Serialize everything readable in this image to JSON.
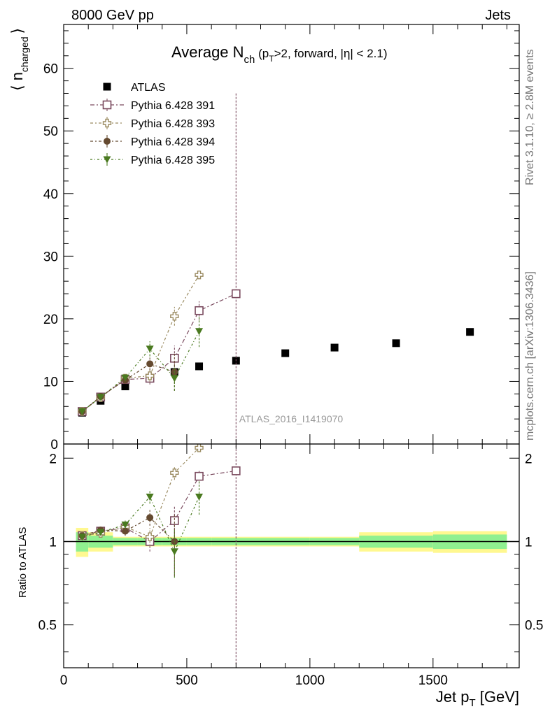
{
  "header": {
    "left": "8000 GeV pp",
    "right": "Jets"
  },
  "side_text": {
    "rivet": "Rivet 3.1.10, ≥ 2.8M events",
    "mcplots": "mcplots.cern.ch [arXiv:1306.3436]"
  },
  "chart_data": [
    {
      "type": "scatter",
      "title_main": "Average N",
      "title_sub": "ch",
      "title_rest_1": " (p",
      "title_rest_sub": "T",
      "title_rest_2": ">2, forward, |η| < 2.1)",
      "ylabel_main": "⟨ n",
      "ylabel_sub": "charged",
      "ylabel_end": "⟩",
      "watermark": "ATLAS_2016_I1419070",
      "xlim": [
        0,
        1850
      ],
      "ylim": [
        0,
        67
      ],
      "yticks": [
        0,
        10,
        20,
        30,
        40,
        50,
        60
      ],
      "series": [
        {
          "name": "ATLAS",
          "color": "#000000",
          "marker": "square-filled",
          "x": [
            75,
            150,
            250,
            350,
            450,
            550,
            700,
            900,
            1100,
            1350,
            1650
          ],
          "y": [
            5.0,
            6.9,
            9.2,
            10.5,
            11.5,
            12.4,
            13.3,
            14.5,
            15.4,
            16.1,
            17.9
          ]
        },
        {
          "name": "Pythia 6.428 391",
          "color": "#7a4a5e",
          "marker": "square-open",
          "x": [
            75,
            150,
            250,
            350,
            450,
            550,
            700
          ],
          "y": [
            5.2,
            7.5,
            10.3,
            10.5,
            13.7,
            21.3,
            24.0
          ],
          "err": [
            0.3,
            0.3,
            0.5,
            1.0,
            2.0,
            1.5,
            32.0
          ]
        },
        {
          "name": "Pythia 6.428 393",
          "color": "#9a8a60",
          "marker": "cross-open",
          "x": [
            75,
            150,
            250,
            350,
            450,
            550
          ],
          "y": [
            5.2,
            7.4,
            10.5,
            10.9,
            20.4,
            27.0
          ],
          "err": [
            0.3,
            0.3,
            0.5,
            1.0,
            1.5,
            0.5
          ]
        },
        {
          "name": "Pythia 6.428 394",
          "color": "#654a30",
          "marker": "circle-filled",
          "x": [
            75,
            150,
            250,
            350,
            450
          ],
          "y": [
            5.2,
            7.6,
            10.2,
            12.8,
            11.5
          ],
          "err": [
            0.3,
            0.3,
            0.5,
            1.0,
            3.0
          ]
        },
        {
          "name": "Pythia 6.428 395",
          "color": "#4a7a20",
          "marker": "triangle-down-filled",
          "x": [
            75,
            150,
            250,
            350,
            450,
            550
          ],
          "y": [
            5.2,
            7.5,
            10.6,
            15.2,
            10.5,
            18.0
          ],
          "err": [
            0.3,
            0.3,
            0.5,
            1.2,
            2.0,
            2.5
          ]
        }
      ]
    },
    {
      "type": "scatter",
      "ylabel": "Ratio to ATLAS",
      "xlabel_main": "Jet p",
      "xlabel_sub": "T",
      "xlabel_end": " [GeV]",
      "xlim": [
        0,
        1850
      ],
      "ylim": [
        0.35,
        2.25
      ],
      "yticks": [
        0.5,
        1,
        2
      ],
      "xticks": [
        0,
        500,
        1000,
        1500
      ],
      "bands": {
        "edges": [
          50,
          100,
          200,
          300,
          400,
          500,
          600,
          800,
          1000,
          1200,
          1500,
          1800
        ],
        "green": [
          0.08,
          0.05,
          0.03,
          0.03,
          0.03,
          0.03,
          0.03,
          0.03,
          0.03,
          0.05,
          0.06
        ],
        "yellow": [
          0.12,
          0.08,
          0.04,
          0.04,
          0.04,
          0.04,
          0.04,
          0.04,
          0.04,
          0.08,
          0.09
        ],
        "green_color": "#90f090",
        "yellow_color": "#fff890"
      },
      "series": [
        {
          "name": "Pythia 6.428 391",
          "x": [
            75,
            150,
            250,
            350,
            450,
            550,
            700
          ],
          "y": [
            1.05,
            1.09,
            1.12,
            1.0,
            1.19,
            1.72,
            1.8
          ],
          "err": [
            0.02,
            0.02,
            0.04,
            0.08,
            0.15,
            0.1,
            2.0
          ]
        },
        {
          "name": "Pythia 6.428 393",
          "x": [
            75,
            150,
            250,
            350,
            450,
            550
          ],
          "y": [
            1.05,
            1.07,
            1.13,
            1.04,
            1.77,
            2.18
          ],
          "err": [
            0.02,
            0.02,
            0.04,
            0.08,
            0.1,
            0.03
          ]
        },
        {
          "name": "Pythia 6.428 394",
          "x": [
            75,
            150,
            250,
            350,
            450
          ],
          "y": [
            1.05,
            1.1,
            1.09,
            1.22,
            1.0
          ],
          "err": [
            0.02,
            0.02,
            0.04,
            0.08,
            0.25
          ]
        },
        {
          "name": "Pythia 6.428 395",
          "x": [
            75,
            150,
            250,
            350,
            450,
            550
          ],
          "y": [
            1.04,
            1.08,
            1.15,
            1.45,
            0.92,
            1.45
          ],
          "err": [
            0.02,
            0.02,
            0.04,
            0.08,
            0.18,
            0.2
          ]
        }
      ]
    }
  ]
}
